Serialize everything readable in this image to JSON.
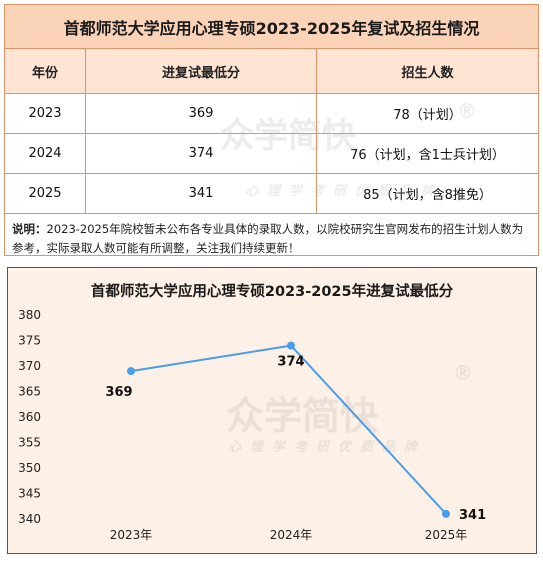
{
  "table": {
    "title": "首都师范大学应用心理专硕2023-2025年复试及招生情况",
    "headers": [
      "年份",
      "进复试最低分",
      "招生人数"
    ],
    "rows": [
      [
        "2023",
        "369",
        "78（计划）"
      ],
      [
        "2024",
        "374",
        "76（计划，含1士兵计划）"
      ],
      [
        "2025",
        "341",
        "85（计划，含8推免）"
      ]
    ],
    "note_label": "说明：",
    "note_text": "2023-2025年院校暂未公布各专业具体的录取人数，以院校研究生官网发布的招生计划人数为参考，实际录取人数可能有所调整，关注我们持续更新！"
  },
  "watermark": {
    "brand": "众学简快",
    "registered": "®",
    "slogan": "心理学考研优质品牌"
  },
  "colors": {
    "header_bg": "#fbd3b8",
    "line": "#4a9de8",
    "chart_bg": "#fdf0e6"
  },
  "chart_data": {
    "type": "line",
    "title": "首都师范大学应用心理专硕2023-2025年进复试最低分",
    "categories": [
      "2023年",
      "2024年",
      "2025年"
    ],
    "series": [
      {
        "values": [
          369,
          374,
          341
        ]
      }
    ],
    "data_labels": [
      "369",
      "374",
      "341"
    ],
    "ylim": [
      340,
      380
    ],
    "yticks": [
      340,
      345,
      350,
      355,
      360,
      365,
      370,
      375,
      380
    ],
    "grid": false
  }
}
